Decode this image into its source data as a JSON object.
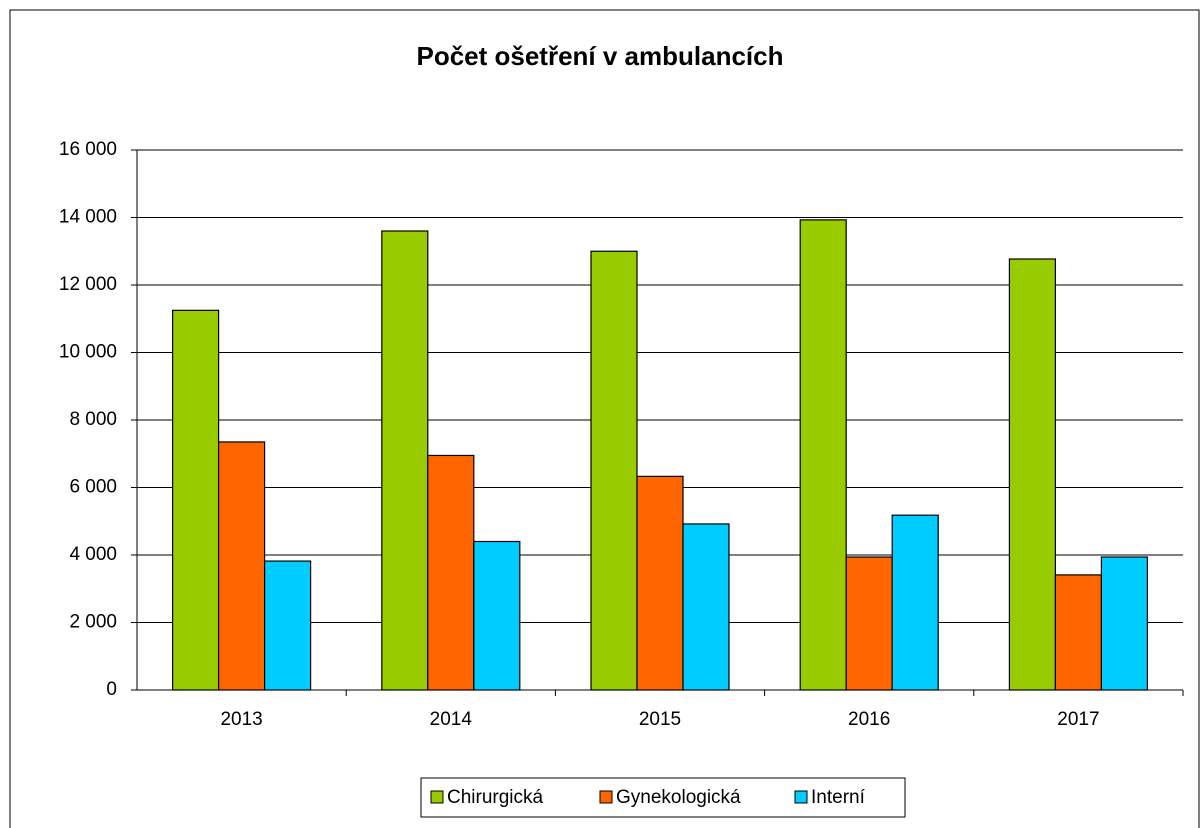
{
  "chart_data": {
    "type": "bar",
    "title": "Počet ošetření v ambulancích",
    "categories": [
      "2013",
      "2014",
      "2015",
      "2016",
      "2017"
    ],
    "series": [
      {
        "name": "Chirurgická",
        "color": "#99cc00",
        "values": [
          11250,
          13600,
          13000,
          13930,
          12770
        ]
      },
      {
        "name": "Gynekologická",
        "color": "#ff6600",
        "values": [
          7350,
          6950,
          6330,
          3940,
          3410
        ]
      },
      {
        "name": "Interní",
        "color": "#00ccff",
        "values": [
          3820,
          4400,
          4920,
          5180,
          3940
        ]
      }
    ],
    "ylim": [
      0,
      16000
    ],
    "yticks": [
      0,
      {
        "value": 2000,
        "label": "2 000"
      },
      {
        "value": 4000,
        "label": "4 000"
      },
      {
        "value": 6000,
        "label": "6 000"
      },
      {
        "value": 8000,
        "label": "8 000"
      },
      {
        "value": 10000,
        "label": "10 000"
      },
      {
        "value": 12000,
        "label": "12 000"
      },
      {
        "value": 14000,
        "label": "14 000"
      },
      {
        "value": 16000,
        "label": "16 000"
      }
    ],
    "grid": true
  }
}
